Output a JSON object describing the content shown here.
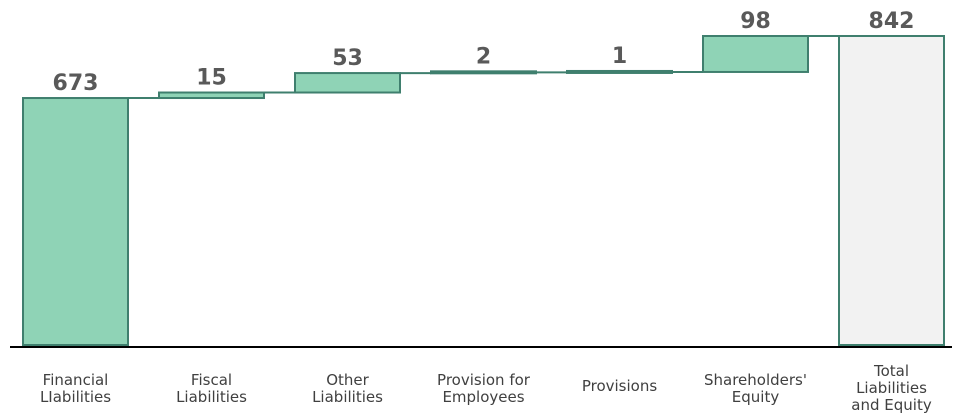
{
  "chart_data": {
    "type": "waterfall",
    "title": "",
    "xlabel": "",
    "ylabel": "",
    "ylim": [
      0,
      842
    ],
    "categories": [
      [
        "Financial",
        "LIabilities"
      ],
      [
        "Fiscal",
        "Liabilities"
      ],
      [
        "Other",
        "Liabilities"
      ],
      [
        "Provision for",
        "Employees"
      ],
      [
        "Provisions"
      ],
      [
        "Shareholders'",
        "Equity"
      ],
      [
        "Total",
        "Liabilities",
        "and Equity"
      ]
    ],
    "values": [
      673,
      15,
      53,
      2,
      1,
      98,
      842
    ],
    "labels": [
      "673",
      "15",
      "53",
      "2",
      "1",
      "98",
      "842"
    ],
    "is_total": [
      false,
      false,
      false,
      false,
      false,
      false,
      true
    ],
    "colors": {
      "increase_fill": "#8fd3b6",
      "increase_stroke": "#3f7f6e",
      "total_fill": "#f2f2f2",
      "total_stroke": "#3f7f6e",
      "axis": "#000000",
      "label": "#595959"
    },
    "grid": false,
    "legend": "none"
  }
}
